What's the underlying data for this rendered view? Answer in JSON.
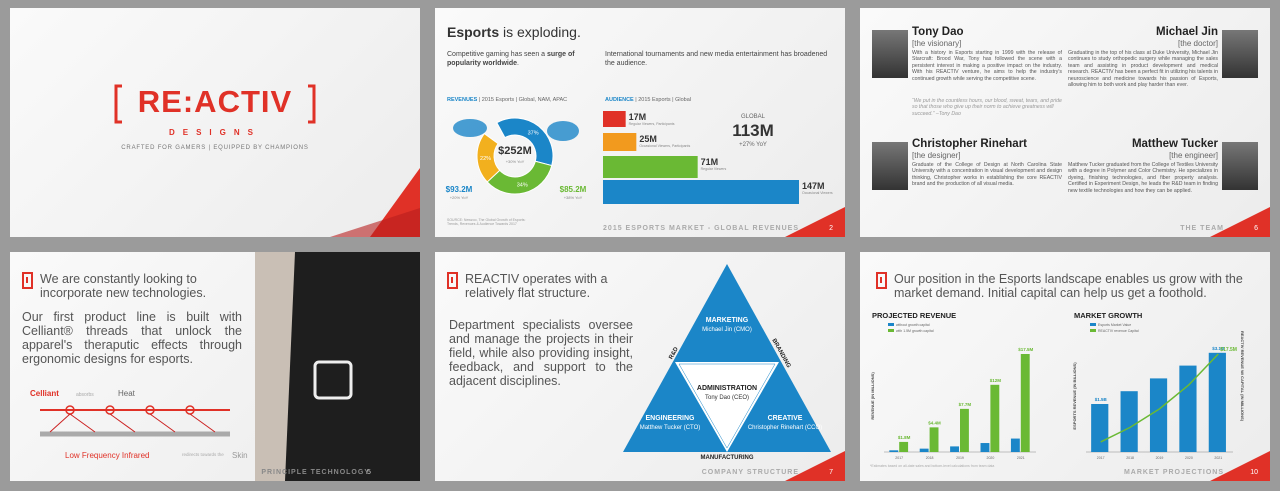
{
  "slides": [
    {
      "logo": "RE:ACTIV",
      "logo_sub": "DESIGNS",
      "tagline": "CRAFTED FOR GAMERS | EQUIPPED BY CHAMPIONS"
    },
    {
      "title_bold": "Esports",
      "title_rest": " is exploding.",
      "intro_left": "Competitive gaming has seen a ",
      "intro_left_bold": "surge of popularity worldwide",
      "intro_left_end": ".",
      "intro_right": "International tournaments and new media entertainment has broadened the audience.",
      "revenue": {
        "label": "REVENUES",
        "label_rest": " | 2015 Esports | Global, NAM, APAC",
        "total": "$252M",
        "total_sub": "+30% YoY",
        "slices": [
          {
            "value": 37,
            "label": "37%",
            "color": "#1b86c8"
          },
          {
            "value": 34,
            "label": "34%",
            "color": "#6ab934"
          },
          {
            "value": 22,
            "label": "22%",
            "color": "#f2b01e"
          }
        ],
        "left_value": "$93.2M",
        "left_sub": "+20% YoY",
        "right_value": "$85.2M",
        "right_sub": "+38% YoY"
      },
      "audience": {
        "label": "AUDIENCE",
        "label_rest": " | 2015 Esports | Global",
        "global": "GLOBAL",
        "global_value": "113M",
        "global_sub": "+27% YoY",
        "xlim": [
          0,
          150
        ],
        "bars": [
          {
            "value": 17,
            "label": "17M",
            "caption": "Regular Viewers, Participants",
            "color": "#e03127"
          },
          {
            "value": 25,
            "label": "25M",
            "caption": "Occasional Viewers, Participants",
            "color": "#f29a1e"
          },
          {
            "value": 71,
            "label": "71M",
            "caption": "Regular Viewers",
            "color": "#6ab934"
          },
          {
            "value": 147,
            "label": "147M",
            "caption": "Occasional Viewers",
            "color": "#1b86c8"
          }
        ]
      },
      "source": "SOURCE: Newzoo, The Global Growth of Esports: Trends, Revenues & Audience Towards 2017",
      "footer": "2015 ESPORTS MARKET - GLOBAL REVENUES",
      "page": "2"
    },
    {
      "people": [
        {
          "name": "Tony Dao",
          "role": "[the visionary]",
          "bio": "With a history in Esports starting in 1999 with the release of Starcraft: Brood War, Tony has followed the scene with a persistent interest in making a positive impact on the industry. With his REACTIV venture, he aims to help the industry's continued growth while serving the competitive scene.",
          "quote": "“We put in the countless hours, our blood, sweat, tears, and pride so that those who give up their norm to achieve greatness will succeed.” –Tony Dao"
        },
        {
          "name": "Michael Jin",
          "role": "[the doctor]",
          "bio": "Graduating in the top of his class at Duke University, Michael Jin continues to study orthopedic surgery while managing the sales team and assisting in product development and medical research. REACTIV has been a perfect fit in utilizing his talents in neuroscience and medicine towards his passion of Esports, allowing him to both work and play harder than ever."
        },
        {
          "name": "Christopher Rinehart",
          "role": "[the designer]",
          "bio": "Graduate of the College of Design at North Carolina State University with a concentration in visual development and design thinking, Christopher works in establishing the core REACTIV brand and the production of all visual media."
        },
        {
          "name": "Matthew Tucker",
          "role": "[the engineer]",
          "bio": "Matthew Tucker graduated from the College of Textiles University with a degree in Polymer and Color Chemistry. He specializes in dyeing, finishing technologies, and fiber property analysis. Certified in Experiment Design, he leads the R&D team in finding new textile technologies and how they can be applied."
        }
      ],
      "footer": "THE TEAM",
      "page": "6"
    },
    {
      "heading": "We are constantly looking to incorporate new technologies.",
      "body": "Our first product line is built with Celliant® threads that unlock the apparel's theraputic effects through ergonomic designs for esports.",
      "diagram": {
        "source": "Celliant",
        "absorbs": "absorbs",
        "heat": "Heat",
        "output": "Low Frequency Infrared",
        "redirects": "redirects towards the",
        "skin": "Skin"
      },
      "footer": "PRINCIPLE TECHNOLOGY",
      "page": "5"
    },
    {
      "heading": "REACTIV operates with a relatively flat structure.",
      "body": "Department specialists oversee and manage the projects in their field, while also providing insight, feedback, and support  to the adjacent disciplines.",
      "top": {
        "title": "MARKETING",
        "person": "Michael Jin (CMO)"
      },
      "center": {
        "title": "ADMINISTRATION",
        "person": "Tony Dao (CEO)"
      },
      "left": {
        "title": "ENGINEERING",
        "person": "Matthew Tucker (CTO)"
      },
      "right": {
        "title": "CREATIVE",
        "person": "Christopher Rinehart (CCO)"
      },
      "edges": {
        "left": "R&D",
        "right": "BRANDING",
        "bottom": "MANUFACTURING"
      },
      "footer": "COMPANY STRUCTURE",
      "page": "7"
    },
    {
      "heading": "Our position in the Esports landscape enables us grow with the market demand. Initial capital can help us get a foothold.",
      "projected": {
        "title": "PROJECTED REVENUE",
        "ylabel": "REVENUE (IN MILLIONS)",
        "categories": [
          "2017",
          "2018",
          "2019",
          "2020",
          "2021"
        ],
        "ylim": [
          0,
          20
        ],
        "series": [
          {
            "name": "without growth capital",
            "color": "#1b86c8",
            "values": [
              0.3,
              0.6,
              1,
              1.6,
              2.4
            ]
          },
          {
            "name": "with 1.5M growth capital",
            "color": "#6ab934",
            "values": [
              1.8,
              4.4,
              7.7,
              12,
              17.5
            ],
            "value_labels": [
              "$1.8M",
              "$4.4M",
              "$7.7M",
              "$12M",
              "$17.5M"
            ]
          }
        ]
      },
      "growth": {
        "title": "MARKET GROWTH",
        "ylabel": "ESPORTS REVENUE (IN BILLIONS)",
        "y2label": "REACTIV REVENUE W/ CAPITAL (IN MILLIONS)",
        "categories": [
          "2017",
          "2018",
          "2019",
          "2020",
          "2021"
        ],
        "ylim": [
          0,
          3.5
        ],
        "y2lim": [
          0,
          20
        ],
        "series": [
          {
            "name": "Esports Market Value",
            "color": "#1b86c8",
            "values": [
              1.5,
              1.9,
              2.3,
              2.7,
              3.1
            ],
            "value_labels": [
              "$1.5B",
              null,
              null,
              null,
              "$3.1B"
            ]
          },
          {
            "name": "REACTIV revenue Capital",
            "color": "#6ab934",
            "axis": "y2",
            "values": [
              1.8,
              4.4,
              7.7,
              12,
              17.5
            ],
            "value_labels": [
              null,
              null,
              null,
              null,
              "$17.5M"
            ]
          }
        ]
      },
      "note": "*Estimates based on all-date sales and bottom-level calculations from team data",
      "footer": "MARKET PROJECTIONS",
      "page": "10"
    }
  ]
}
